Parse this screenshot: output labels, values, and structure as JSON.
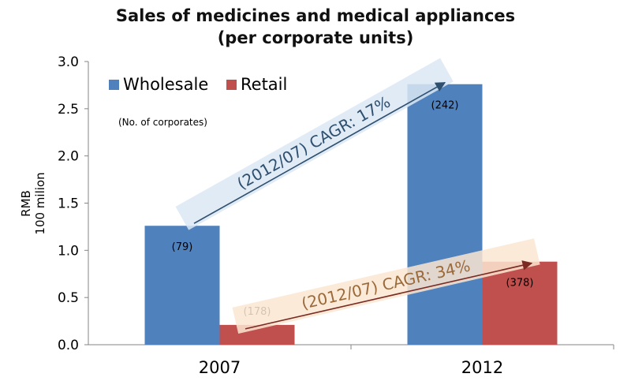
{
  "chart_data": {
    "type": "bar",
    "title_line1": "Sales of medicines and medical appliances",
    "title_line2": "(per corporate units)",
    "ylabel_line1": "RMB",
    "ylabel_line2": "100 milion",
    "xlabel": "",
    "categories": [
      "2007",
      "2012"
    ],
    "ylim": [
      0,
      3.0
    ],
    "yticks": [
      "0.0",
      "0.5",
      "1.0",
      "1.5",
      "2.0",
      "2.5",
      "3.0"
    ],
    "grid": false,
    "legend_position": "top-left",
    "legend_note": "(No. of corporates)",
    "series": [
      {
        "name": "Wholesale",
        "color": "#4f81bd",
        "values": [
          1.26,
          2.76
        ],
        "labels": [
          "(79)",
          "(242)"
        ]
      },
      {
        "name": "Retail",
        "color": "#c0504d",
        "values": [
          0.21,
          0.88
        ],
        "labels": [
          "(178)",
          "(378)"
        ]
      }
    ],
    "annotations": [
      {
        "text": "(2012/07) CAGR: 17%",
        "series": "Wholesale",
        "color": "#2f4f6f",
        "band_color": "#dbe8f5"
      },
      {
        "text": "(2012/07) CAGR: 34%",
        "series": "Retail",
        "color": "#9a6a3a",
        "band_color": "#fbe6d2"
      }
    ]
  }
}
